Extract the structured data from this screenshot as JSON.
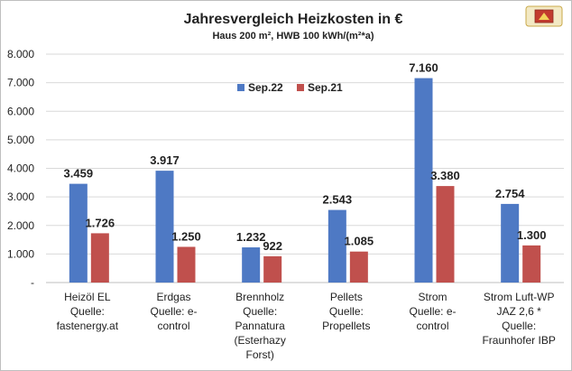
{
  "colors": {
    "sep22": "#4e79c4",
    "sep21": "#c0504d"
  },
  "chart_data": {
    "type": "bar",
    "title": "Jahresvergleich Heizkosten in €",
    "subtitle": "Haus 200 m², HWB 100 kWh/(m²*a)",
    "xlabel": "",
    "ylabel": "",
    "ylim": [
      0,
      8000
    ],
    "yticks": [
      "-",
      "1.000",
      "2.000",
      "3.000",
      "4.000",
      "5.000",
      "6.000",
      "7.000",
      "8.000"
    ],
    "grid": true,
    "legend_position": "top-center",
    "categories": [
      [
        "Heizöl EL",
        "Quelle:",
        "fastenergy.at"
      ],
      [
        "Erdgas",
        "Quelle: e-",
        "control"
      ],
      [
        "Brennholz",
        "Quelle:",
        "Pannatura",
        "(Esterhazy",
        "Forst)"
      ],
      [
        "Pellets",
        "Quelle:",
        "Propellets"
      ],
      [
        "Strom",
        "Quelle: e-",
        "control"
      ],
      [
        "Strom Luft-WP",
        "JAZ 2,6 *",
        "Quelle:",
        "Fraunhofer IBP"
      ]
    ],
    "series": [
      {
        "name": "Sep.22",
        "values": [
          3459,
          3917,
          1232,
          2543,
          7160,
          2754
        ],
        "labels": [
          "3.459",
          "3.917",
          "1.232",
          "2.543",
          "7.160",
          "2.754"
        ]
      },
      {
        "name": "Sep.21",
        "values": [
          1726,
          1250,
          922,
          1085,
          3380,
          1300
        ],
        "labels": [
          "1.726",
          "1.250",
          "922",
          "1.085",
          "3.380",
          "1.300"
        ]
      }
    ]
  }
}
